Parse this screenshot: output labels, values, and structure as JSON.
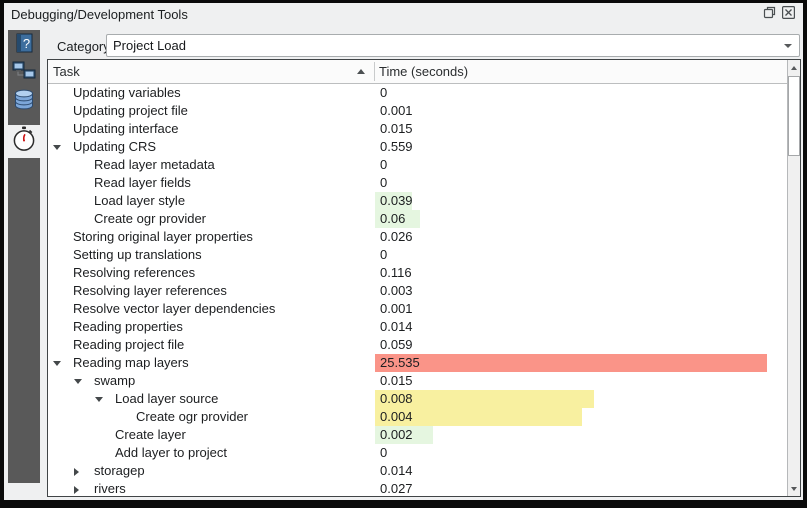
{
  "window": {
    "title": "Debugging/Development Tools"
  },
  "category": {
    "label": "Category",
    "value": "Project Load"
  },
  "sidebar": {
    "tabs": [
      {
        "id": "help",
        "icon": "help-book-icon",
        "selected": false
      },
      {
        "id": "network-logger",
        "icon": "network-icon",
        "selected": false
      },
      {
        "id": "query-logger",
        "icon": "database-icon",
        "selected": false
      },
      {
        "id": "profiler",
        "icon": "stopwatch-icon",
        "selected": true
      }
    ]
  },
  "table": {
    "columns": [
      {
        "label": "Task",
        "sort": "asc"
      },
      {
        "label": "Time (seconds)",
        "sort": null
      }
    ],
    "rows": [
      {
        "label": "Updating variables",
        "value": "0",
        "level": 0,
        "expander": "none",
        "bar": null
      },
      {
        "label": "Updating project file",
        "value": "0.001",
        "level": 0,
        "expander": "none",
        "bar": null
      },
      {
        "label": "Updating interface",
        "value": "0.015",
        "level": 0,
        "expander": "none",
        "bar": null
      },
      {
        "label": "Updating CRS",
        "value": "0.559",
        "level": 0,
        "expander": "expanded",
        "bar": null
      },
      {
        "label": "Read layer metadata",
        "value": "0",
        "level": 1,
        "expander": "none",
        "bar": null
      },
      {
        "label": "Read layer fields",
        "value": "0",
        "level": 1,
        "expander": "none",
        "bar": null
      },
      {
        "label": "Load layer style",
        "value": "0.039",
        "level": 1,
        "expander": "none",
        "bar": {
          "color": "green",
          "width_pct": 9
        }
      },
      {
        "label": "Create ogr provider",
        "value": "0.06",
        "level": 1,
        "expander": "none",
        "bar": {
          "color": "green",
          "width_pct": 11
        }
      },
      {
        "label": "Storing original layer properties",
        "value": "0.026",
        "level": 0,
        "expander": "none",
        "bar": null
      },
      {
        "label": "Setting up translations",
        "value": "0",
        "level": 0,
        "expander": "none",
        "bar": null
      },
      {
        "label": "Resolving references",
        "value": "0.116",
        "level": 0,
        "expander": "none",
        "bar": null
      },
      {
        "label": "Resolving layer references",
        "value": "0.003",
        "level": 0,
        "expander": "none",
        "bar": null
      },
      {
        "label": "Resolve vector layer dependencies",
        "value": "0.001",
        "level": 0,
        "expander": "none",
        "bar": null
      },
      {
        "label": "Reading properties",
        "value": "0.014",
        "level": 0,
        "expander": "none",
        "bar": null
      },
      {
        "label": "Reading project file",
        "value": "0.059",
        "level": 0,
        "expander": "none",
        "bar": null
      },
      {
        "label": "Reading map layers",
        "value": "25.535",
        "level": 0,
        "expander": "expanded",
        "bar": {
          "color": "red",
          "width_pct": 95
        }
      },
      {
        "label": "swamp",
        "value": "0.015",
        "level": 1,
        "expander": "expanded",
        "bar": null
      },
      {
        "label": "Load layer source",
        "value": "0.008",
        "level": 2,
        "expander": "expanded",
        "bar": {
          "color": "yellow",
          "width_pct": 53
        }
      },
      {
        "label": "Create ogr provider",
        "value": "0.004",
        "level": 3,
        "expander": "none",
        "bar": {
          "color": "yellow",
          "width_pct": 50
        }
      },
      {
        "label": "Create layer",
        "value": "0.002",
        "level": 2,
        "expander": "none",
        "bar": {
          "color": "green",
          "width_pct": 14
        }
      },
      {
        "label": "Add layer to project",
        "value": "0",
        "level": 2,
        "expander": "none",
        "bar": null
      },
      {
        "label": "storagep",
        "value": "0.014",
        "level": 1,
        "expander": "collapsed",
        "bar": null
      },
      {
        "label": "rivers",
        "value": "0.027",
        "level": 1,
        "expander": "collapsed",
        "bar": null
      }
    ]
  },
  "colors": {
    "bar_red": "#fa9488",
    "bar_yellow": "#f8f0a0",
    "bar_green": "#e5f6e0"
  }
}
